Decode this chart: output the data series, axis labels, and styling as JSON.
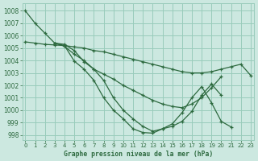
{
  "background_color": "#cce8e0",
  "grid_color": "#99ccbb",
  "line_color": "#2d6a3f",
  "marker": "+",
  "xlabel": "Graphe pression niveau de la mer (hPa)",
  "xlim": [
    -0.3,
    23.3
  ],
  "ylim": [
    997.6,
    1008.6
  ],
  "yticks": [
    998,
    999,
    1000,
    1001,
    1002,
    1003,
    1004,
    1005,
    1006,
    1007,
    1008
  ],
  "lines": [
    {
      "start": 0,
      "values": [
        1008.0,
        1007.0,
        1006.2,
        1005.4,
        1005.3,
        1004.8,
        1003.9,
        1003.3,
        1002.4,
        1001.0,
        1000.0,
        999.3,
        998.7,
        998.3,
        998.5,
        998.7,
        999.1,
        999.9,
        1001.2,
        1002.1,
        1001.2
      ]
    },
    {
      "start": 3,
      "values": [
        1005.4,
        1005.2,
        1003.95,
        1003.3,
        1002.4,
        1001.0,
        1000.0,
        999.3,
        998.5,
        998.2,
        998.15,
        998.5,
        998.9,
        999.8,
        1001.0,
        1001.9,
        1000.6,
        999.1,
        998.65
      ]
    },
    {
      "start": 3,
      "values": [
        1005.4,
        1005.15,
        1004.5,
        1004.0,
        1003.3,
        1002.9,
        1002.5,
        1002.0,
        1001.6,
        1001.2,
        1000.8,
        1000.5,
        1000.3,
        1000.2,
        1000.5,
        1001.0,
        1001.8,
        1002.7
      ]
    },
    {
      "start": 0,
      "values": [
        1005.5,
        1005.4,
        1005.3,
        1005.25,
        1005.2,
        1005.1,
        1005.0,
        1004.8,
        1004.7,
        1004.5,
        1004.3,
        1004.1,
        1003.9,
        1003.7,
        1003.5,
        1003.3,
        1003.1,
        1003.0,
        1003.0,
        1003.1,
        1003.3,
        1003.5,
        1003.7,
        1002.8
      ]
    }
  ]
}
